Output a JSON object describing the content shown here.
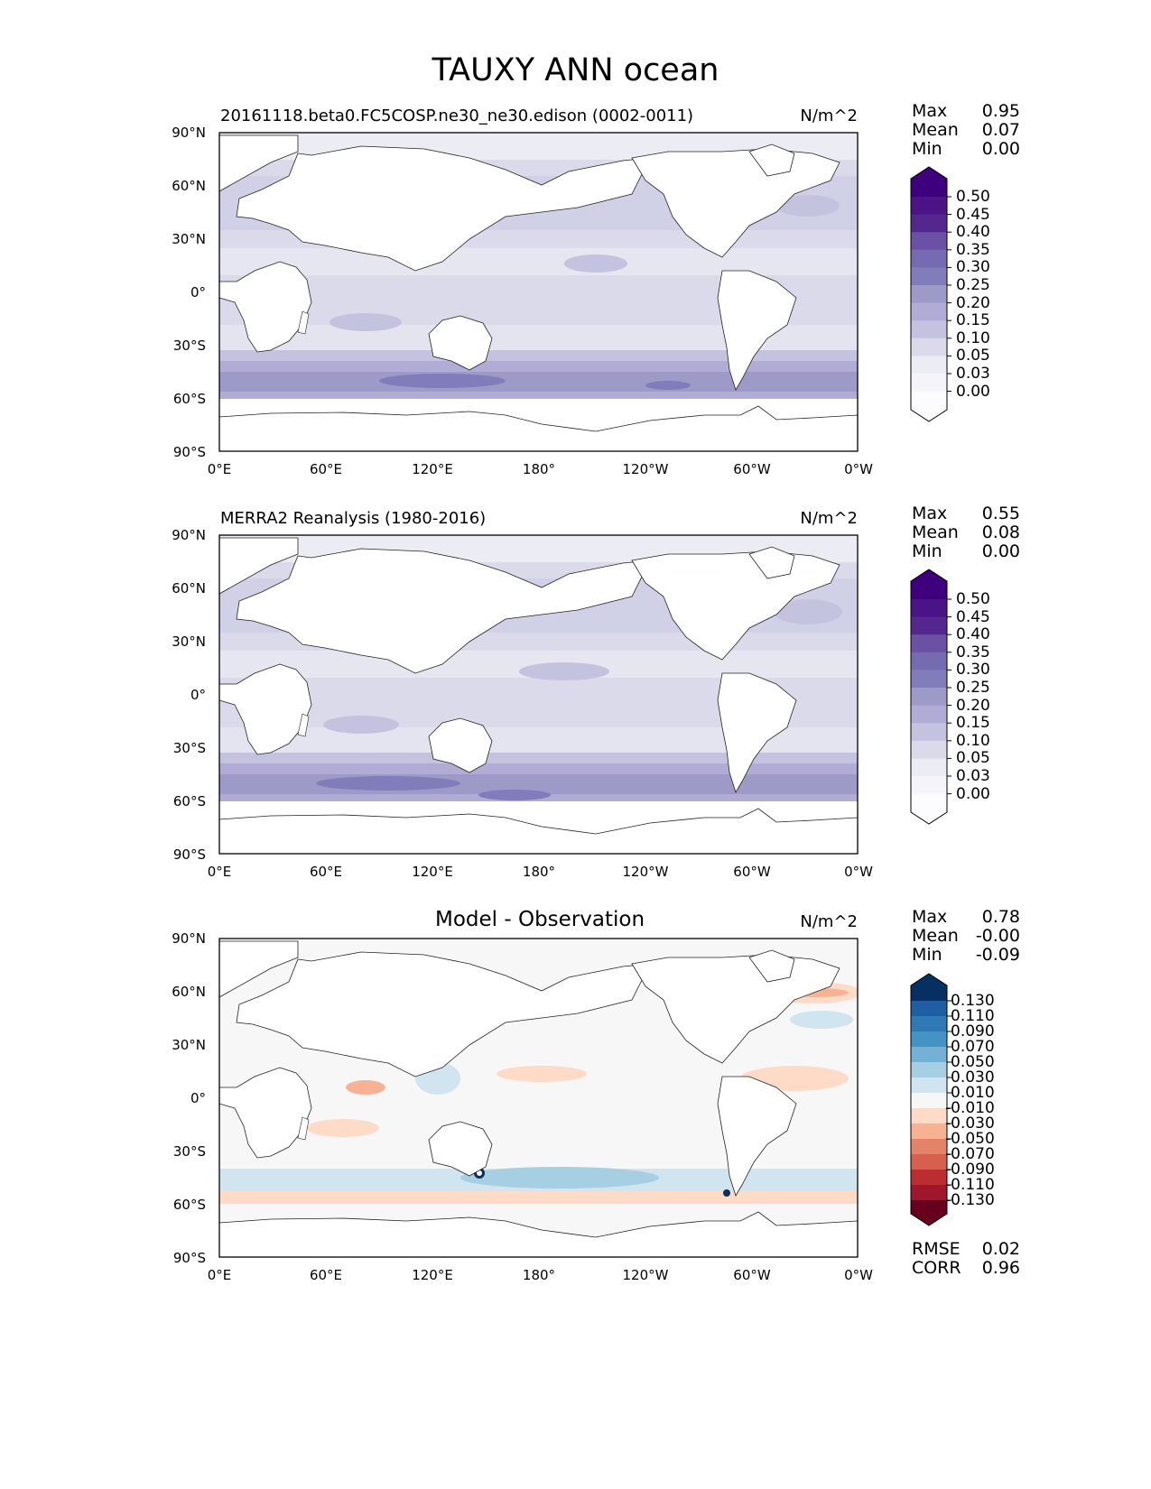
{
  "title": "TAUXY ANN ocean",
  "panels": [
    {
      "title": "20161118.beta0.FC5COSP.ne30_ne30.edison (0002-0011)",
      "units": "N/m^2",
      "stats": [
        [
          "Max",
          "0.95"
        ],
        [
          "Mean",
          "0.07"
        ],
        [
          "Min",
          "0.00"
        ]
      ],
      "colorbar": {
        "levels": [
          "0.50",
          "0.45",
          "0.40",
          "0.35",
          "0.30",
          "0.25",
          "0.20",
          "0.15",
          "0.10",
          "0.05",
          "0.03",
          "0.00"
        ],
        "colors": [
          "#3f007d",
          "#4a1486",
          "#54278f",
          "#6a51a3",
          "#756bb1",
          "#807dba",
          "#9e9ac8",
          "#b0acd5",
          "#c3c3df",
          "#dadaeb",
          "#ececf4",
          "#f5f5f9",
          "#fcfbfd"
        ]
      }
    },
    {
      "title": "MERRA2 Reanalysis (1980-2016)",
      "units": "N/m^2",
      "stats": [
        [
          "Max",
          "0.55"
        ],
        [
          "Mean",
          "0.08"
        ],
        [
          "Min",
          "0.00"
        ]
      ],
      "colorbar": {
        "levels": [
          "0.50",
          "0.45",
          "0.40",
          "0.35",
          "0.30",
          "0.25",
          "0.20",
          "0.15",
          "0.10",
          "0.05",
          "0.03",
          "0.00"
        ],
        "colors": [
          "#3f007d",
          "#4a1486",
          "#54278f",
          "#6a51a3",
          "#756bb1",
          "#807dba",
          "#9e9ac8",
          "#b0acd5",
          "#c3c3df",
          "#dadaeb",
          "#ececf4",
          "#f5f5f9",
          "#fcfbfd"
        ]
      }
    },
    {
      "title": "Model - Observation",
      "units": "N/m^2",
      "stats": [
        [
          "Max",
          "0.78"
        ],
        [
          "Mean",
          "-0.00"
        ],
        [
          "Min",
          "-0.09"
        ]
      ],
      "metrics": [
        [
          "RMSE",
          "0.02"
        ],
        [
          "CORR",
          "0.96"
        ]
      ],
      "colorbar": {
        "levels": [
          "0.130",
          "0.110",
          "0.090",
          "0.070",
          "0.050",
          "0.030",
          "0.010",
          "-0.010",
          "-0.030",
          "-0.050",
          "-0.070",
          "-0.090",
          "-0.110",
          "-0.130"
        ],
        "colors": [
          "#053061",
          "#1d5fa2",
          "#2f79b5",
          "#4393c3",
          "#75b1d4",
          "#a7cfe4",
          "#d1e5f0",
          "#f7f7f7",
          "#fddbc7",
          "#f6b293",
          "#e58368",
          "#d6604d",
          "#bc2d32",
          "#a0172b",
          "#67001f"
        ]
      }
    }
  ],
  "axes": {
    "lat_ticks": [
      "90°N",
      "60°N",
      "30°N",
      "0°",
      "30°S",
      "60°S",
      "90°S"
    ],
    "lon_ticks": [
      "0°E",
      "60°E",
      "120°E",
      "180°",
      "120°W",
      "60°W",
      "0°W"
    ]
  }
}
